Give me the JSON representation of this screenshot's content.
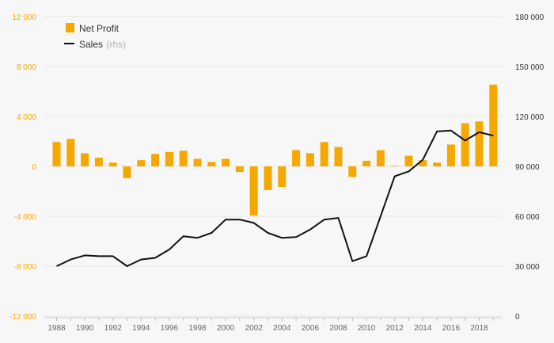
{
  "chart_data": {
    "type": "bar+line",
    "x": [
      1988,
      1989,
      1990,
      1991,
      1992,
      1993,
      1994,
      1995,
      1996,
      1997,
      1998,
      1999,
      2000,
      2001,
      2002,
      2003,
      2004,
      2005,
      2006,
      2007,
      2008,
      2009,
      2010,
      2011,
      2012,
      2013,
      2014,
      2015,
      2016,
      2017,
      2018,
      2019
    ],
    "x_tick_labels": [
      "1988",
      "1990",
      "1992",
      "1994",
      "1996",
      "1998",
      "2000",
      "2002",
      "2004",
      "2006",
      "2008",
      "2010",
      "2012",
      "2014",
      "2016",
      "2018"
    ],
    "series": [
      {
        "name": "Net Profit",
        "type": "bar",
        "axis": "left",
        "color": "#f5a800",
        "values": [
          1950,
          2200,
          1050,
          700,
          300,
          -950,
          500,
          1000,
          1150,
          1250,
          600,
          350,
          600,
          -450,
          -3950,
          -1900,
          -1650,
          1300,
          1050,
          1950,
          1550,
          -850,
          450,
          1300,
          50,
          850,
          500,
          300,
          1750,
          3450,
          3600,
          6550
        ]
      },
      {
        "name": "Sales",
        "name_suffix": "(rhs)",
        "type": "line",
        "axis": "right",
        "color": "#111111",
        "values": [
          30000,
          34000,
          36500,
          36000,
          36000,
          30000,
          34000,
          35000,
          40000,
          48000,
          47000,
          50000,
          58000,
          58000,
          56000,
          50000,
          47000,
          47500,
          52000,
          58000,
          59000,
          33000,
          36000,
          60000,
          84000,
          87000,
          94000,
          111000,
          111500,
          105500,
          110500,
          108500
        ]
      }
    ],
    "y_left": {
      "ylim": [
        -12000,
        12000
      ],
      "ticks": [
        -12000,
        -8000,
        -4000,
        0,
        4000,
        8000,
        12000
      ],
      "tick_labels": [
        "-12 000",
        "-8 000",
        "-4 000",
        "0",
        "4 000",
        "8 000",
        "12 000"
      ],
      "color": "#f5a800"
    },
    "y_right": {
      "ylim": [
        0,
        180000
      ],
      "ticks": [
        0,
        30000,
        60000,
        90000,
        120000,
        150000,
        180000
      ],
      "tick_labels": [
        "0",
        "30 000",
        "60 000",
        "90 000",
        "120 000",
        "150 000",
        "180 000"
      ],
      "color": "#333333"
    },
    "grid": true,
    "legend": {
      "position": "top-left",
      "items": [
        "Net Profit",
        "Sales (rhs)"
      ]
    },
    "title": "",
    "xlabel": "",
    "ylabel": ""
  }
}
